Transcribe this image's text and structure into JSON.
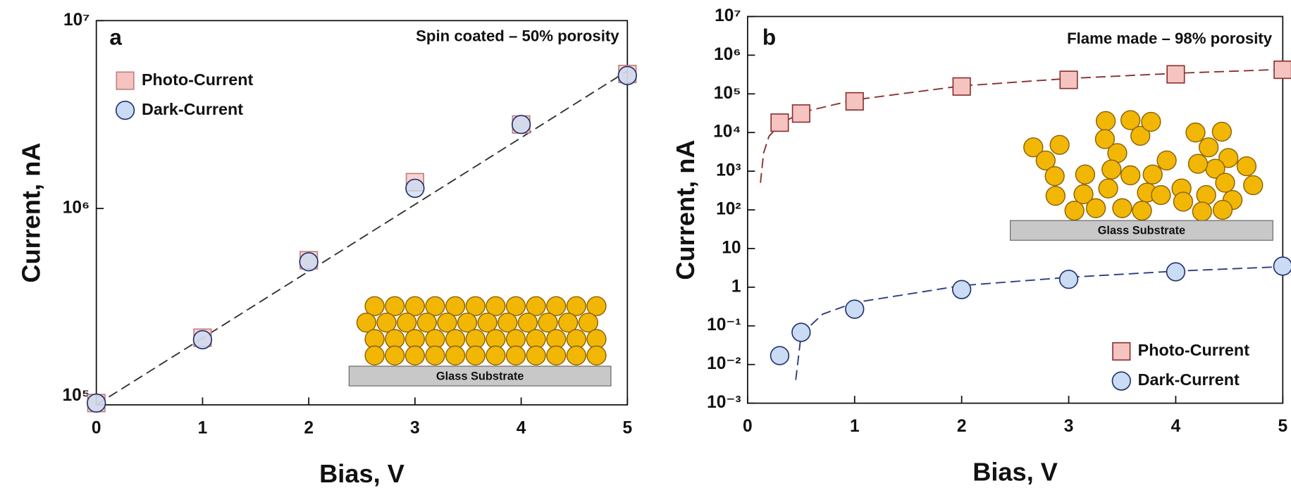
{
  "chart_data": [
    {
      "type": "scatter",
      "log_y": true,
      "legend": "upper left",
      "annotations": [
        "a",
        "Spin coated – 50% porosity"
      ],
      "inset_label": "Glass Substrate",
      "xlabel": "Bias, V",
      "ylabel": "Current, nA",
      "xlim": [
        0,
        5
      ],
      "ylim": [
        90000,
        10000000
      ],
      "xticks": [
        0,
        1,
        2,
        3,
        4,
        5
      ],
      "yticks": [
        {
          "value": 100000,
          "label": "10⁵"
        },
        {
          "value": 1000000,
          "label": "10⁶"
        },
        {
          "value": 10000000,
          "label": "10⁷"
        }
      ],
      "x": [
        0,
        1,
        2,
        3,
        4,
        5
      ],
      "series": [
        {
          "name": "Photo-Current",
          "marker": "square",
          "color": "#f5c4c0",
          "edge_color": "#c08080",
          "values": [
            92000,
            205000,
            530000,
            1380000,
            2800000,
            5200000
          ]
        },
        {
          "name": "Dark-Current",
          "marker": "circle",
          "color": "#c9dcf4",
          "edge_color": "#22306e",
          "values": [
            92000,
            200000,
            520000,
            1280000,
            2800000,
            5100000
          ]
        }
      ],
      "fit_lines": [
        {
          "color": "#333333",
          "x": [
            0,
            5
          ],
          "values": [
            90000,
            5400000
          ]
        }
      ]
    },
    {
      "type": "scatter",
      "log_y": true,
      "legend": "lower right",
      "annotations": [
        "b",
        "Flame made – 98% porosity"
      ],
      "inset_label": "Glass Substrate",
      "xlabel": "Bias, V",
      "ylabel": "Current, nA",
      "xlim": [
        0,
        5
      ],
      "ylim": [
        0.001,
        10000000
      ],
      "xticks": [
        0,
        1,
        2,
        3,
        4,
        5
      ],
      "yticks": [
        {
          "value": 0.001,
          "label": "10⁻³"
        },
        {
          "value": 0.01,
          "label": "10⁻²"
        },
        {
          "value": 0.1,
          "label": "10⁻¹"
        },
        1,
        10,
        {
          "value": 100,
          "label": "10²"
        },
        {
          "value": 1000,
          "label": "10³"
        },
        {
          "value": 10000,
          "label": "10⁴"
        },
        {
          "value": 100000,
          "label": "10⁵"
        },
        {
          "value": 1000000,
          "label": "10⁶"
        },
        {
          "value": 10000000,
          "label": "10⁷"
        }
      ],
      "x": [
        0.3,
        0.5,
        1,
        2,
        3,
        4,
        5
      ],
      "series": [
        {
          "name": "Photo-Current",
          "marker": "square",
          "color": "#f5c4c0",
          "edge_color": "#8a3030",
          "values": [
            18000,
            31000,
            64000,
            155000,
            230000,
            320000,
            420000
          ]
        },
        {
          "name": "Dark-Current",
          "marker": "circle",
          "color": "#c9dcf4",
          "edge_color": "#22306e",
          "values": [
            0.017,
            0.068,
            0.27,
            0.87,
            1.6,
            2.5,
            3.5
          ]
        }
      ],
      "fit_lines": [
        {
          "color": "#8b2e2e",
          "x": [
            0.12,
            0.15,
            0.2,
            0.3,
            0.5,
            1,
            2,
            3,
            4,
            5
          ],
          "values": [
            500,
            3000,
            8000,
            16000,
            33000,
            70000,
            160000,
            250000,
            340000,
            430000
          ]
        },
        {
          "color": "#2e3a80",
          "x": [
            0.45,
            0.5,
            0.7,
            1,
            2,
            3,
            4,
            5
          ],
          "values": [
            0.004,
            0.06,
            0.2,
            0.4,
            1.1,
            1.8,
            2.6,
            3.4
          ]
        }
      ]
    }
  ]
}
